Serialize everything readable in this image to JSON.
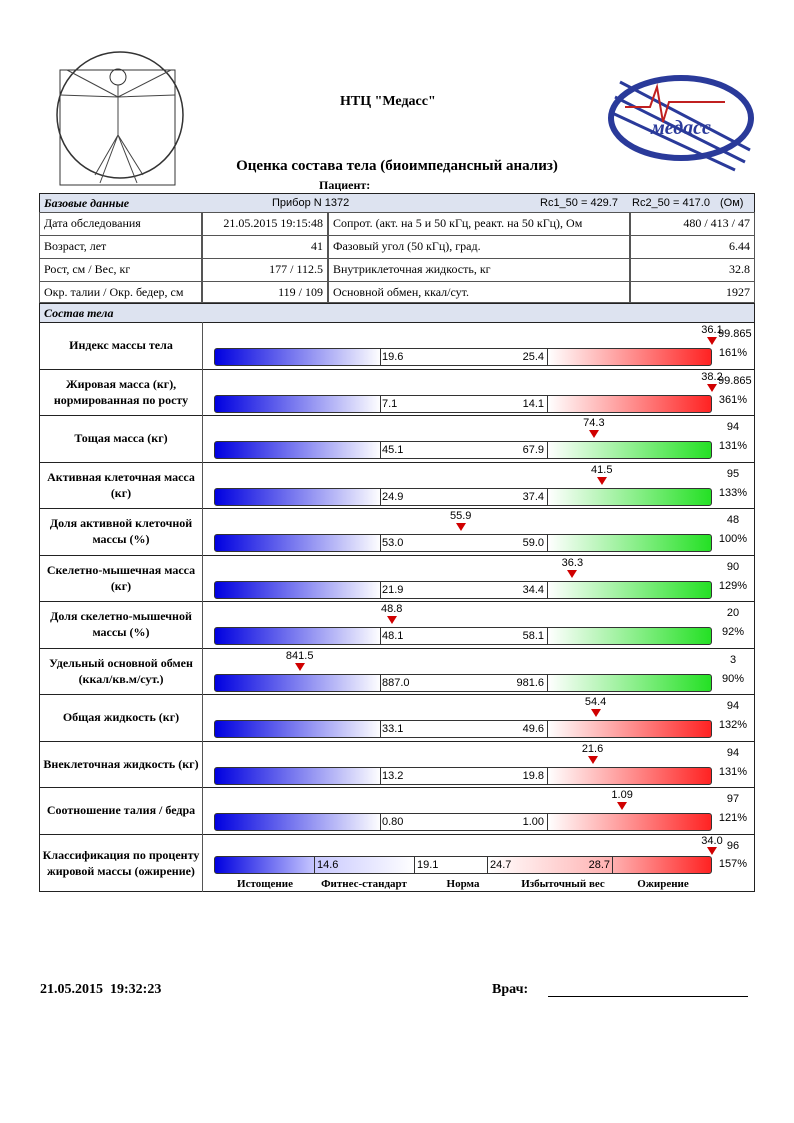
{
  "header": {
    "org": "НТЦ \"Медасс\"",
    "title": "Оценка состава тела (биоимпедансный анализ)",
    "patient_label": "Пациент:",
    "logo_text": "медасс"
  },
  "base": {
    "title": "Базовые данные",
    "device": "Прибор N 1372",
    "rc1": "Rc1_50 = 429.7",
    "rc2": "Rc2_50 = 417.0",
    "unit": "(Ом)",
    "rows": [
      [
        "Дата обследования",
        "21.05.2015 19:15:48",
        "Сопрот. (акт. на 5 и 50 кГц, реакт. на 50 кГц), Ом",
        "480 / 413 / 47"
      ],
      [
        "Возраст, лет",
        41,
        "Фазовый угол (50 кГц), град.",
        6.44
      ],
      [
        "Рост, см / Вес, кг",
        "177 / 112.5",
        "Внутриклеточная жидкость, кг",
        32.8
      ],
      [
        "Окр. талии / Окр. бедер, см",
        "119 / 109",
        "Основной обмен, ккал/сут.",
        1927
      ]
    ]
  },
  "composition": {
    "title": "Состав тела",
    "rows": [
      {
        "label": "Индекс массы тела",
        "low": 19.6,
        "high": 25.4,
        "value": 36.1,
        "percentile": 99.865,
        "ratio": {
          "value": 161,
          "label": "161%"
        },
        "color": "red"
      },
      {
        "label": "Жировая масса (кг), нормированная по росту",
        "low": 7.1,
        "high": 14.1,
        "value": 38.2,
        "percentile": 99.865,
        "ratio": {
          "value": 361,
          "label": "361%"
        },
        "color": "red"
      },
      {
        "label": "Тощая масса (кг)",
        "low": 45.1,
        "high": 67.9,
        "value": 74.3,
        "percentile": 94,
        "ratio": {
          "value": 131,
          "label": "131%"
        },
        "color": "green"
      },
      {
        "label": "Активная клеточная масса (кг)",
        "low": 24.9,
        "high": 37.4,
        "value": 41.5,
        "percentile": 95,
        "ratio": {
          "value": 133,
          "label": "133%"
        },
        "color": "green"
      },
      {
        "label": "Доля активной клеточной массы (%)",
        "low": {
          "value": 53,
          "label": "53.0"
        },
        "high": {
          "value": 59,
          "label": "59.0"
        },
        "value": 55.9,
        "percentile": 48,
        "ratio": {
          "value": 100,
          "label": "100%"
        },
        "color": "green"
      },
      {
        "label": "Скелетно-мышечная масса (кг)",
        "low": 21.9,
        "high": 34.4,
        "value": 36.3,
        "percentile": 90,
        "ratio": {
          "value": 129,
          "label": "129%"
        },
        "color": "green"
      },
      {
        "label": "Доля скелетно-мышечной массы (%)",
        "low": 48.1,
        "high": 58.1,
        "value": 48.8,
        "percentile": 20,
        "ratio": {
          "value": 92,
          "label": "92%"
        },
        "color": "green"
      },
      {
        "label": "Удельный основной обмен (ккал/кв.м/сут.)",
        "low": {
          "value": 887,
          "label": "887.0"
        },
        "high": 981.6,
        "value": 841.5,
        "percentile": 3,
        "ratio": {
          "value": 90,
          "label": "90%"
        },
        "color": "green"
      },
      {
        "label": "Общая жидкость (кг)",
        "low": 33.1,
        "high": 49.6,
        "value": 54.4,
        "percentile": 94,
        "ratio": {
          "value": 132,
          "label": "132%"
        },
        "color": "red"
      },
      {
        "label": "Внеклеточная жидкость (кг)",
        "low": 13.2,
        "high": 19.8,
        "value": 21.6,
        "percentile": 94,
        "ratio": {
          "value": 131,
          "label": "131%"
        },
        "color": "red"
      },
      {
        "label": "Соотношение талия / бедра",
        "low": {
          "value": 0.8,
          "label": "0.80"
        },
        "high": {
          "value": 1,
          "label": "1.00"
        },
        "value": 1.09,
        "percentile": 97,
        "ratio": {
          "value": 121,
          "label": "121%"
        },
        "color": "red"
      }
    ],
    "classification": {
      "label": "Классификация по проценту жировой массы (ожирение)",
      "bounds": [
        14.6,
        19.1,
        24.7,
        28.7
      ],
      "value": {
        "value": 34,
        "label": "34.0"
      },
      "percentile": 96,
      "ratio": {
        "value": 157,
        "label": "157%"
      },
      "categories": [
        "Истощение",
        "Фитнес-стандарт",
        "Норма",
        "Избыточный вес",
        "Ожирение"
      ]
    }
  },
  "footer": {
    "datetime": "21.05.2015  19:32:23",
    "doctor_label": "Врач:"
  }
}
